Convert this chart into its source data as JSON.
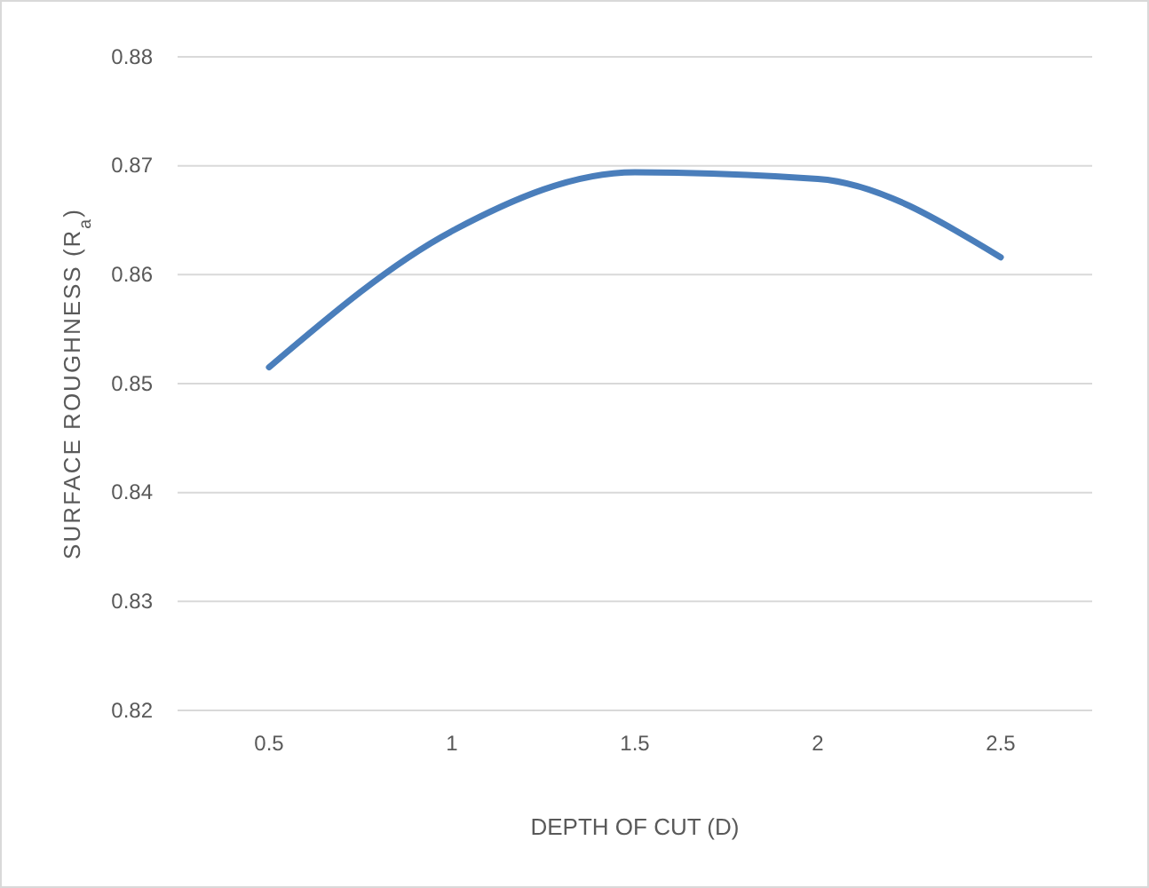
{
  "chart_data": {
    "type": "line",
    "xlabel": "DEPTH OF CUT (D)",
    "ylabel": "SURFACE ROUGHNESS (R$_{a}$)",
    "categories": [
      "0.5",
      "1",
      "1.5",
      "2",
      "2.5"
    ],
    "series": [
      {
        "color": "#4a7ebb",
        "values": [
          0.8515,
          0.864,
          0.8694,
          0.8688,
          0.8616
        ]
      }
    ],
    "ylim": [
      0.82,
      0.88
    ],
    "yticks": [
      0.82,
      0.83,
      0.84,
      0.85,
      0.86,
      0.87,
      0.88
    ],
    "grid": "y",
    "marker": "none",
    "line_style": "solid"
  }
}
